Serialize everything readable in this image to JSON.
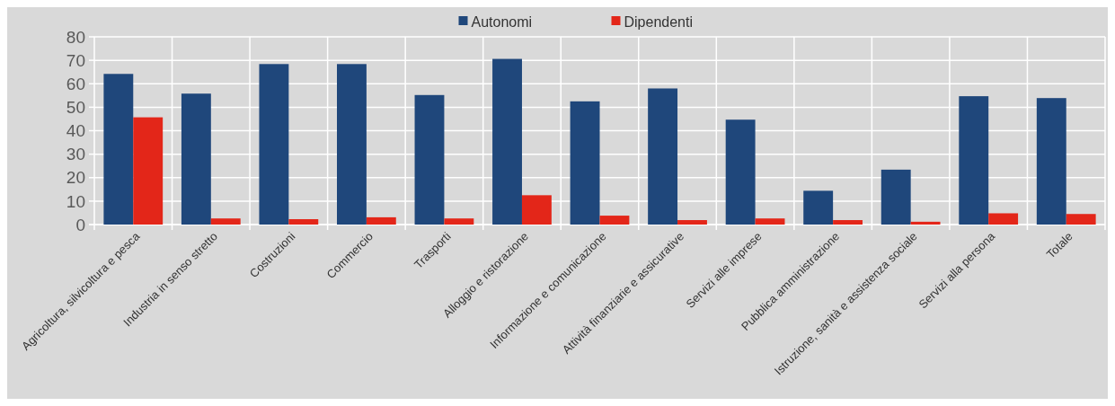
{
  "chart_data": {
    "type": "bar",
    "categories": [
      "Agricoltura, silvicoltura e pesca",
      "Industria in senso stretto",
      "Costruzioni",
      "Commercio",
      "Trasporti",
      "Alloggio e ristorazione",
      "Informazione e comunicazione",
      "Attività finanziarie e assicurative",
      "Servizi alle imprese",
      "Pubblica amministrazione",
      "Istruzione, sanità e assistenza sociale",
      "Servizi alla persona",
      "Totale"
    ],
    "series": [
      {
        "name": "Autonomi",
        "color": "#1f477b",
        "values": [
          64.2,
          55.8,
          68.4,
          68.4,
          55.2,
          70.6,
          52.5,
          58.0,
          44.7,
          14.4,
          23.4,
          54.7,
          53.9
        ]
      },
      {
        "name": "Dipendenti",
        "color": "#e32619",
        "values": [
          45.7,
          2.6,
          2.3,
          3.1,
          2.6,
          12.5,
          3.8,
          1.9,
          2.6,
          1.9,
          1.2,
          4.8,
          4.5
        ]
      }
    ],
    "ylim": [
      0,
      80
    ],
    "yticks": [
      0,
      10,
      20,
      30,
      40,
      50,
      60,
      70,
      80
    ],
    "grid": true,
    "legend": "top"
  }
}
